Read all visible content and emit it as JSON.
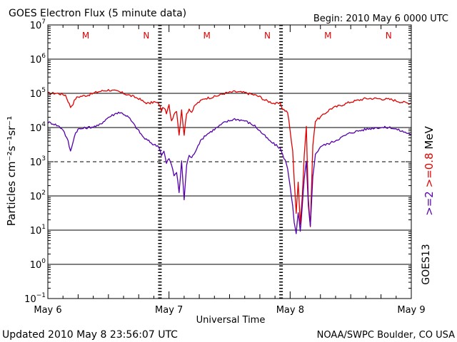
{
  "chart_data": {
    "type": "line",
    "title": "GOES Electron Flux (5 minute data)",
    "begin_label": "Begin: 2010 May 6 0000 UTC",
    "xlabel": "Universal Time",
    "ylabel": "Particles cm⁻²s⁻¹sr⁻¹",
    "updated": "Updated 2010 May  8 23:56:07 UTC",
    "credit": "NOAA/SWPC Boulder, CO USA",
    "satellite": "GOES13",
    "energy_labels": [
      {
        "text": ">=2",
        "color": "#5500aa"
      },
      {
        "text": ">=0.8",
        "color": "#e00000"
      },
      {
        "text": "MeV",
        "color": "#000000"
      }
    ],
    "x_ticks": [
      {
        "label": "May 6",
        "hour": 0
      },
      {
        "label": "May 7",
        "hour": 24
      },
      {
        "label": "May 8",
        "hour": 48
      },
      {
        "label": "May 9",
        "hour": 72
      }
    ],
    "xlim": [
      0,
      72
    ],
    "ylim": [
      -1,
      7
    ],
    "yscale": "log",
    "y_ticks": [
      {
        "base": "10",
        "exp": "7",
        "value": 7
      },
      {
        "base": "10",
        "exp": "6",
        "value": 6
      },
      {
        "base": "10",
        "exp": "5",
        "value": 5
      },
      {
        "base": "10",
        "exp": "4",
        "value": 4
      },
      {
        "base": "10",
        "exp": "3",
        "value": 3
      },
      {
        "base": "10",
        "exp": "2",
        "value": 2
      },
      {
        "base": "10",
        "exp": "1",
        "value": 1
      },
      {
        "base": "10",
        "exp": "0",
        "value": 0
      },
      {
        "base": "10",
        "exp": "−1",
        "value": -1
      }
    ],
    "threshold_log": 3,
    "day_night_markers": [
      {
        "label": "M",
        "hour": 7.5
      },
      {
        "label": "N",
        "hour": 19.5
      },
      {
        "label": "M",
        "hour": 31.5
      },
      {
        "label": "N",
        "hour": 43.5
      },
      {
        "label": "M",
        "hour": 55.5
      },
      {
        "label": "N",
        "hour": 67.5
      }
    ],
    "dashed_verticals_hour": [
      22.2,
      46.2
    ],
    "series": [
      {
        "name": ">=0.8 MeV",
        "color": "#e00000",
        "x": [
          0,
          2,
          3.5,
          4.5,
          5,
          5.5,
          6,
          8,
          10,
          12,
          14,
          16,
          18,
          19,
          20,
          21,
          22,
          22.5,
          23,
          23.5,
          24,
          24.5,
          25,
          25.5,
          26,
          26.5,
          27,
          27.5,
          28,
          28.5,
          29,
          29.5,
          30,
          31,
          33,
          35,
          37,
          39,
          41,
          42,
          43,
          44,
          45,
          46,
          46.5,
          47,
          47.5,
          48,
          48.5,
          48.8,
          49.2,
          49.6,
          50,
          50.4,
          50.8,
          51.2,
          51.6,
          52,
          52.5,
          53,
          54,
          56,
          58,
          60,
          63,
          65,
          68,
          70,
          72
        ],
        "y": [
          5.0,
          5.0,
          4.95,
          4.6,
          4.7,
          4.85,
          4.9,
          4.95,
          5.05,
          5.1,
          5.05,
          4.95,
          4.85,
          4.75,
          4.7,
          4.75,
          4.7,
          4.5,
          4.6,
          4.4,
          4.65,
          4.2,
          4.4,
          4.5,
          3.8,
          4.5,
          3.8,
          4.4,
          4.55,
          4.45,
          4.6,
          4.7,
          4.75,
          4.85,
          4.9,
          5.0,
          5.05,
          5.02,
          4.95,
          4.9,
          4.8,
          4.75,
          4.7,
          4.7,
          4.55,
          4.5,
          4.45,
          3.9,
          3.3,
          2.5,
          1.5,
          2.4,
          1.2,
          2.0,
          3.2,
          4.0,
          1.9,
          1.1,
          3.5,
          4.2,
          4.3,
          4.55,
          4.65,
          4.75,
          4.85,
          4.85,
          4.82,
          4.75,
          4.7
        ]
      },
      {
        "name": ">=2 MeV",
        "color": "#5500aa",
        "x": [
          0,
          1,
          2,
          3,
          4,
          4.5,
          5,
          5.5,
          6,
          8,
          10,
          12,
          14,
          15,
          16,
          17,
          18,
          19,
          20,
          21,
          22,
          22.5,
          23,
          23.5,
          24,
          24.5,
          25,
          25.5,
          26,
          26.5,
          27,
          27.5,
          28,
          28.5,
          29,
          29.5,
          30,
          31,
          33,
          35,
          37,
          39,
          41,
          42,
          43,
          44,
          45,
          46,
          46.5,
          47,
          47.5,
          48,
          48.5,
          48.8,
          49.2,
          49.6,
          50,
          50.4,
          50.8,
          51.2,
          51.6,
          52,
          52.5,
          53,
          54,
          56,
          58,
          60,
          63,
          65,
          68,
          70,
          72
        ],
        "y": [
          4.15,
          4.12,
          4.05,
          3.95,
          3.6,
          3.3,
          3.6,
          3.85,
          3.95,
          4.0,
          4.05,
          4.3,
          4.45,
          4.4,
          4.3,
          4.1,
          3.9,
          3.7,
          3.6,
          3.5,
          3.45,
          3.2,
          3.3,
          2.95,
          3.1,
          2.9,
          2.6,
          2.7,
          2.1,
          3.0,
          1.9,
          2.9,
          3.2,
          3.1,
          3.25,
          3.4,
          3.55,
          3.75,
          3.95,
          4.15,
          4.25,
          4.2,
          4.05,
          3.9,
          3.75,
          3.6,
          3.5,
          3.4,
          3.2,
          3.05,
          2.8,
          2.3,
          1.7,
          1.2,
          0.9,
          1.5,
          0.95,
          1.7,
          2.5,
          3.0,
          1.7,
          1.1,
          2.6,
          3.2,
          3.45,
          3.55,
          3.7,
          3.85,
          3.95,
          4.0,
          4.0,
          3.9,
          3.8
        ]
      }
    ]
  }
}
